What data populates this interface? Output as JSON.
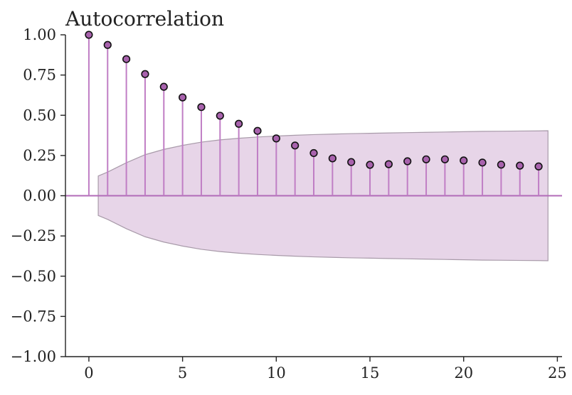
{
  "chart_data": {
    "type": "stem",
    "title": "Autocorrelation",
    "xlabel": "",
    "ylabel": "",
    "xlim": [
      -1.25,
      25.25
    ],
    "ylim": [
      -1.0,
      1.0
    ],
    "x_ticks": [
      0,
      5,
      10,
      15,
      20,
      25
    ],
    "x_tick_labels": [
      "0",
      "5",
      "10",
      "15",
      "20",
      "25"
    ],
    "y_ticks": [
      1.0,
      0.75,
      0.5,
      0.25,
      0.0,
      -0.25,
      -0.5,
      -0.75,
      -1.0
    ],
    "y_tick_labels": [
      "1.00",
      "0.75",
      "0.50",
      "0.25",
      "0.00",
      "−0.25",
      "−0.50",
      "−0.75",
      "−1.00"
    ],
    "grid": false,
    "series": [
      {
        "lags": [
          0,
          1,
          2,
          3,
          4,
          5,
          6,
          7,
          8,
          9,
          10,
          11,
          12,
          13,
          14,
          15,
          16,
          17,
          18,
          19,
          20,
          21,
          22,
          23,
          24
        ],
        "values": [
          1.0,
          0.937,
          0.849,
          0.756,
          0.677,
          0.611,
          0.551,
          0.497,
          0.447,
          0.403,
          0.356,
          0.312,
          0.265,
          0.232,
          0.209,
          0.192,
          0.196,
          0.214,
          0.226,
          0.226,
          0.219,
          0.206,
          0.193,
          0.187,
          0.182
        ]
      }
    ],
    "confidence_band": {
      "x": [
        0.5,
        1,
        2,
        3,
        4,
        5,
        6,
        7,
        8,
        9,
        10,
        11,
        12,
        13,
        14,
        15,
        16,
        17,
        18,
        19,
        20,
        21,
        22,
        23,
        24,
        24.5
      ],
      "upper": [
        0.123,
        0.147,
        0.205,
        0.255,
        0.288,
        0.313,
        0.333,
        0.347,
        0.357,
        0.365,
        0.371,
        0.376,
        0.38,
        0.383,
        0.386,
        0.388,
        0.39,
        0.392,
        0.394,
        0.396,
        0.398,
        0.4,
        0.401,
        0.402,
        0.403,
        0.404
      ]
    },
    "colors": {
      "stem": "#c07ec5",
      "marker_face": "#a862ad",
      "marker_edge": "#111111",
      "band_fill": "#e7d5e8",
      "band_edge": "#a89aa9",
      "zero_line": "#b26bb8",
      "axis": "#222222"
    }
  }
}
